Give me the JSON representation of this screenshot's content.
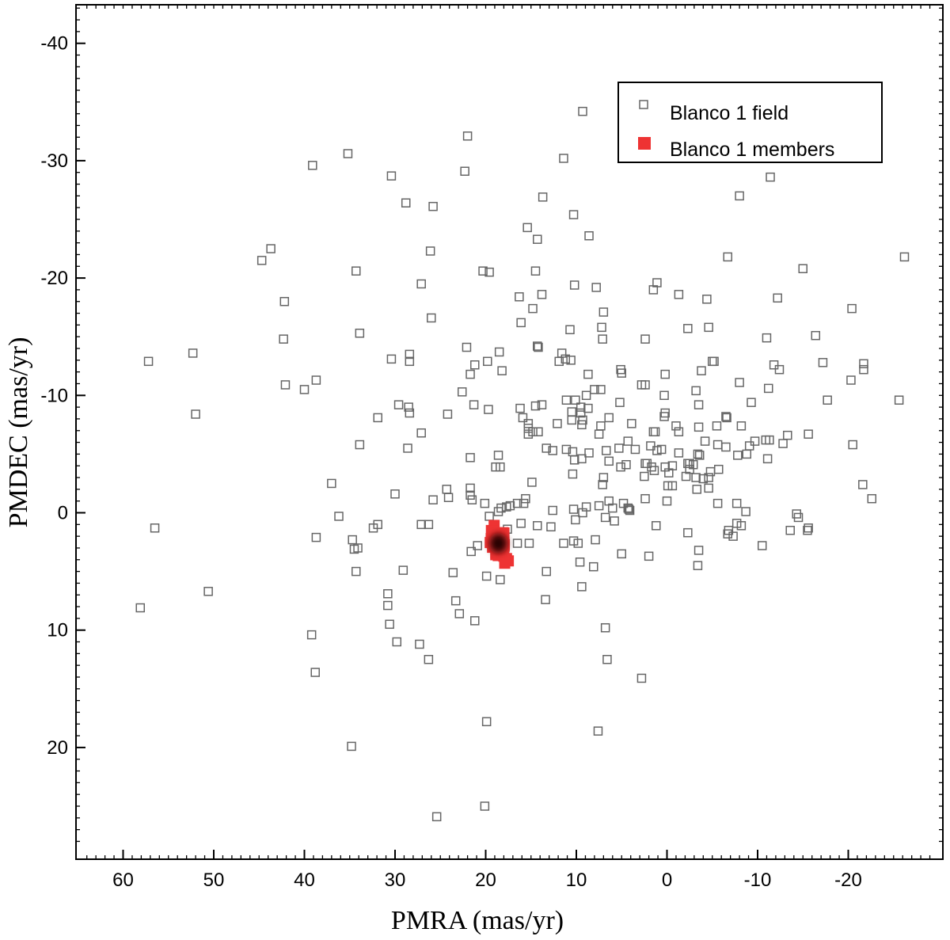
{
  "chart_data": {
    "type": "scatter",
    "title": "",
    "xlabel": "PMRA (mas/yr)",
    "ylabel": "PMDEC (mas/yr)",
    "xlim": [
      65,
      -30
    ],
    "ylim": [
      29,
      -44
    ],
    "x_reversed": true,
    "y_reversed": true,
    "grid": false,
    "legend_position": "top-right",
    "x_ticks": [
      60,
      50,
      40,
      30,
      20,
      10,
      0,
      -10,
      -20
    ],
    "y_ticks": [
      -40,
      -30,
      -20,
      -10,
      0,
      10,
      20
    ],
    "series": [
      {
        "name": "Blanco 1 field",
        "marker": "open-square",
        "color": "#666666",
        "points": [
          [
            9.3,
            -34.2
          ],
          [
            35.2,
            -30.6
          ],
          [
            22,
            -32.1
          ],
          [
            11.4,
            -30.2
          ],
          [
            39.1,
            -29.6
          ],
          [
            30.4,
            -28.7
          ],
          [
            22.3,
            -29.1
          ],
          [
            -11.4,
            -28.6
          ],
          [
            28.8,
            -26.4
          ],
          [
            25.8,
            -26.1
          ],
          [
            13.7,
            -26.9
          ],
          [
            -8,
            -27
          ],
          [
            10.3,
            -25.4
          ],
          [
            15.4,
            -24.3
          ],
          [
            14.3,
            -23.3
          ],
          [
            8.6,
            -23.6
          ],
          [
            43.7,
            -22.5
          ],
          [
            44.7,
            -21.5
          ],
          [
            26.1,
            -22.3
          ],
          [
            -6.7,
            -21.8
          ],
          [
            -26.2,
            -21.8
          ],
          [
            34.3,
            -20.6
          ],
          [
            20.3,
            -20.6
          ],
          [
            19.6,
            -20.5
          ],
          [
            14.5,
            -20.6
          ],
          [
            -15,
            -20.8
          ],
          [
            27.1,
            -19.5
          ],
          [
            10.2,
            -19.4
          ],
          [
            7.8,
            -19.2
          ],
          [
            1.1,
            -19.6
          ],
          [
            1.5,
            -19
          ],
          [
            42.2,
            -18
          ],
          [
            16.3,
            -18.4
          ],
          [
            13.8,
            -18.6
          ],
          [
            -1.3,
            -18.6
          ],
          [
            -4.4,
            -18.2
          ],
          [
            -12.2,
            -18.3
          ],
          [
            14.8,
            -17.4
          ],
          [
            7,
            -17.1
          ],
          [
            -20.4,
            -17.4
          ],
          [
            26,
            -16.6
          ],
          [
            16.1,
            -16.2
          ],
          [
            10.7,
            -15.6
          ],
          [
            7.2,
            -15.8
          ],
          [
            -2.3,
            -15.7
          ],
          [
            -4.6,
            -15.8
          ],
          [
            33.9,
            -15.3
          ],
          [
            42.3,
            -14.8
          ],
          [
            7.1,
            -14.8
          ],
          [
            2.4,
            -14.8
          ],
          [
            -11,
            -14.9
          ],
          [
            -16.4,
            -15.1
          ],
          [
            52.3,
            -13.6
          ],
          [
            57.2,
            -12.9
          ],
          [
            28.4,
            -13.5
          ],
          [
            30.4,
            -13.1
          ],
          [
            28.4,
            -12.9
          ],
          [
            22.1,
            -14.1
          ],
          [
            18.5,
            -13.7
          ],
          [
            14.3,
            -14.2
          ],
          [
            14.2,
            -14.1
          ],
          [
            11.6,
            -13.6
          ],
          [
            11.2,
            -13.1
          ],
          [
            11.9,
            -12.9
          ],
          [
            10.6,
            -13
          ],
          [
            21.2,
            -12.6
          ],
          [
            19.8,
            -12.9
          ],
          [
            21.7,
            -11.8
          ],
          [
            18.2,
            -12.1
          ],
          [
            5.1,
            -12.2
          ],
          [
            5,
            -11.9
          ],
          [
            -3.8,
            -12.1
          ],
          [
            -5,
            -12.9
          ],
          [
            -5.2,
            -12.9
          ],
          [
            -11.8,
            -12.6
          ],
          [
            -12.4,
            -12.2
          ],
          [
            -17.2,
            -12.8
          ],
          [
            -21.7,
            -12.7
          ],
          [
            -21.7,
            -12.2
          ],
          [
            8.7,
            -11.8
          ],
          [
            0.2,
            -11.8
          ],
          [
            42.1,
            -10.9
          ],
          [
            38.7,
            -11.3
          ],
          [
            40,
            -10.5
          ],
          [
            -8,
            -11.1
          ],
          [
            -20.3,
            -11.3
          ],
          [
            52,
            -8.4
          ],
          [
            22.6,
            -10.3
          ],
          [
            7.3,
            -10.5
          ],
          [
            2.4,
            -10.9
          ],
          [
            2.8,
            -10.9
          ],
          [
            -3.2,
            -10.4
          ],
          [
            -11.2,
            -10.6
          ],
          [
            -17.7,
            -9.6
          ],
          [
            -25.6,
            -9.6
          ],
          [
            29.6,
            -9.2
          ],
          [
            28.5,
            -9
          ],
          [
            28.4,
            -8.5
          ],
          [
            21.3,
            -9.2
          ],
          [
            19.7,
            -8.8
          ],
          [
            16.2,
            -8.9
          ],
          [
            13.8,
            -9.2
          ],
          [
            11.1,
            -9.6
          ],
          [
            10.1,
            -9.6
          ],
          [
            8.9,
            -10
          ],
          [
            8,
            -10.5
          ],
          [
            5.2,
            -9.4
          ],
          [
            0.3,
            -10
          ],
          [
            -3.5,
            -9.2
          ],
          [
            -9.3,
            -9.4
          ],
          [
            31.9,
            -8.1
          ],
          [
            24.2,
            -8.4
          ],
          [
            15.9,
            -8.1
          ],
          [
            14.5,
            -9.1
          ],
          [
            10.5,
            -8.6
          ],
          [
            9.5,
            -9
          ],
          [
            9.5,
            -8.5
          ],
          [
            8.7,
            -8.9
          ],
          [
            6.4,
            -8.1
          ],
          [
            0.3,
            -8.2
          ],
          [
            -6.5,
            -8.2
          ],
          [
            -6.6,
            -8.1
          ],
          [
            15.3,
            -7.6
          ],
          [
            15.3,
            -7.2
          ],
          [
            12.1,
            -7.6
          ],
          [
            10.5,
            -7.9
          ],
          [
            9.4,
            -7.5
          ],
          [
            9.3,
            -7.9
          ],
          [
            7.3,
            -7.4
          ],
          [
            3.9,
            -7.6
          ],
          [
            0.2,
            -8.5
          ],
          [
            -1,
            -7.4
          ],
          [
            -3.5,
            -7.3
          ],
          [
            -5.5,
            -7.4
          ],
          [
            -8.2,
            -7.4
          ],
          [
            27.1,
            -6.8
          ],
          [
            15.3,
            -6.7
          ],
          [
            14.8,
            -6.9
          ],
          [
            14.2,
            -6.9
          ],
          [
            7.5,
            -6.7
          ],
          [
            4.3,
            -6.1
          ],
          [
            1.5,
            -6.9
          ],
          [
            1.3,
            -6.9
          ],
          [
            -1.3,
            -6.9
          ],
          [
            -4.2,
            -6.1
          ],
          [
            -5.6,
            -5.8
          ],
          [
            -9.1,
            -5.7
          ],
          [
            -9.7,
            -6.1
          ],
          [
            -10.9,
            -6.2
          ],
          [
            -11.3,
            -6.2
          ],
          [
            -12.8,
            -5.9
          ],
          [
            -13.3,
            -6.6
          ],
          [
            -15.6,
            -6.7
          ],
          [
            -20.5,
            -5.8
          ],
          [
            33.9,
            -5.8
          ],
          [
            28.6,
            -5.5
          ],
          [
            13.3,
            -5.5
          ],
          [
            12.6,
            -5.3
          ],
          [
            11.1,
            -5.4
          ],
          [
            10.4,
            -5.2
          ],
          [
            8.6,
            -5.1
          ],
          [
            6.7,
            -5.3
          ],
          [
            5.3,
            -5.5
          ],
          [
            3.5,
            -5.4
          ],
          [
            1.8,
            -5.7
          ],
          [
            1.1,
            -5.3
          ],
          [
            0.6,
            -5.4
          ],
          [
            -1.3,
            -5.1
          ],
          [
            -3.4,
            -5
          ],
          [
            -3.6,
            -4.9
          ],
          [
            -6.5,
            -5.6
          ],
          [
            -7.8,
            -4.9
          ],
          [
            -8.8,
            -5
          ],
          [
            -11.1,
            -4.6
          ],
          [
            21.7,
            -4.7
          ],
          [
            18.6,
            -4.9
          ],
          [
            18.9,
            -3.9
          ],
          [
            18.4,
            -3.9
          ],
          [
            10.2,
            -4.5
          ],
          [
            9.4,
            -4.6
          ],
          [
            6.4,
            -4.4
          ],
          [
            5.1,
            -3.9
          ],
          [
            4.5,
            -4.1
          ],
          [
            2.4,
            -4.2
          ],
          [
            2.2,
            -4.2
          ],
          [
            1.7,
            -3.9
          ],
          [
            1.4,
            -3.6
          ],
          [
            0.2,
            -3.9
          ],
          [
            -0.6,
            -4
          ],
          [
            -2.3,
            -4.2
          ],
          [
            -2.5,
            -4.2
          ],
          [
            -2.5,
            -3.7
          ],
          [
            -2.9,
            -4.1
          ],
          [
            -4.8,
            -3.5
          ],
          [
            10.4,
            -3.3
          ],
          [
            7,
            -3
          ],
          [
            2.5,
            -3.1
          ],
          [
            -2.1,
            -3.1
          ],
          [
            -3.2,
            -3
          ],
          [
            -4,
            -2.9
          ],
          [
            -4.6,
            -3
          ],
          [
            -5.7,
            -3.7
          ],
          [
            -0.2,
            -3.4
          ],
          [
            37,
            -2.5
          ],
          [
            24.3,
            -2
          ],
          [
            21.7,
            -2.1
          ],
          [
            14.9,
            -2.6
          ],
          [
            7.1,
            -2.4
          ],
          [
            -0.6,
            -2.3
          ],
          [
            -0.1,
            -2.3
          ],
          [
            -3.3,
            -2
          ],
          [
            -4.6,
            -2.1
          ],
          [
            -21.6,
            -2.4
          ],
          [
            -22.6,
            -1.2
          ],
          [
            30,
            -1.6
          ],
          [
            25.8,
            -1.1
          ],
          [
            24.1,
            -1.3
          ],
          [
            21.7,
            -1.5
          ],
          [
            21.5,
            -1.1
          ],
          [
            17.7,
            -0.5
          ],
          [
            20.1,
            -0.8
          ],
          [
            17.3,
            -0.6
          ],
          [
            16.5,
            -0.8
          ],
          [
            15.8,
            -0.8
          ],
          [
            15.6,
            -1.2
          ],
          [
            18.3,
            -0.4
          ],
          [
            18.6,
            -0.1
          ],
          [
            12.6,
            -0.2
          ],
          [
            10.3,
            -0.3
          ],
          [
            8.9,
            -0.5
          ],
          [
            7.5,
            -0.6
          ],
          [
            6,
            -0.4
          ],
          [
            6.4,
            -1
          ],
          [
            4.8,
            -0.8
          ],
          [
            4.2,
            -0.3
          ],
          [
            4.3,
            -0.4
          ],
          [
            4.1,
            -0.2
          ],
          [
            2.4,
            -1.2
          ],
          [
            0,
            -1
          ],
          [
            -5.6,
            -0.8
          ],
          [
            -7.7,
            -0.8
          ],
          [
            -8.7,
            -0.1
          ],
          [
            -13.6,
            1.5
          ],
          [
            -15.6,
            1.3
          ],
          [
            -14.3,
            0.1
          ],
          [
            56.5,
            1.3
          ],
          [
            38.7,
            2.1
          ],
          [
            36.2,
            0.3
          ],
          [
            34.7,
            2.3
          ],
          [
            34.5,
            3.1
          ],
          [
            34.1,
            3
          ],
          [
            31.9,
            1
          ],
          [
            32.4,
            1.3
          ],
          [
            27.1,
            1
          ],
          [
            26.3,
            1
          ],
          [
            34.3,
            5
          ],
          [
            16.1,
            0.9
          ],
          [
            19.6,
            0.3
          ],
          [
            18.7,
            2
          ],
          [
            18.4,
            2.6
          ],
          [
            17.6,
            1.4
          ],
          [
            14.3,
            1.1
          ],
          [
            12.8,
            1.2
          ],
          [
            10.1,
            0.6
          ],
          [
            9.3,
            0
          ],
          [
            6.8,
            0.4
          ],
          [
            5.8,
            0.7
          ],
          [
            1.2,
            1.1
          ],
          [
            -2.3,
            1.7
          ],
          [
            -8.2,
            1.1
          ],
          [
            -7.7,
            0.9
          ],
          [
            -10.5,
            2.8
          ],
          [
            21.6,
            3.3
          ],
          [
            20.9,
            2.8
          ],
          [
            16.5,
            2.6
          ],
          [
            15.2,
            2.6
          ],
          [
            11.4,
            2.6
          ],
          [
            10.3,
            2.4
          ],
          [
            9.8,
            2.6
          ],
          [
            7.9,
            2.3
          ],
          [
            5,
            3.5
          ],
          [
            2,
            3.7
          ],
          [
            -3.5,
            3.2
          ],
          [
            -3.4,
            4.5
          ],
          [
            -6.8,
            1.5
          ],
          [
            -6.7,
            1.8
          ],
          [
            -7.3,
            2
          ],
          [
            -14.5,
            0.4
          ],
          [
            -15.5,
            1.5
          ],
          [
            29.1,
            4.9
          ],
          [
            23.6,
            5.1
          ],
          [
            13.3,
            5
          ],
          [
            19.9,
            5.4
          ],
          [
            18.4,
            5.7
          ],
          [
            9.6,
            4.2
          ],
          [
            8.1,
            4.6
          ],
          [
            58.1,
            8.1
          ],
          [
            50.6,
            6.7
          ],
          [
            30.8,
            6.9
          ],
          [
            30.8,
            7.9
          ],
          [
            30.6,
            9.5
          ],
          [
            29.8,
            11
          ],
          [
            27.3,
            11.2
          ],
          [
            26.3,
            12.5
          ],
          [
            23.3,
            7.5
          ],
          [
            22.9,
            8.6
          ],
          [
            21.2,
            9.2
          ],
          [
            13.4,
            7.4
          ],
          [
            9.4,
            6.3
          ],
          [
            39.2,
            10.4
          ],
          [
            38.8,
            13.6
          ],
          [
            6.8,
            9.8
          ],
          [
            6.6,
            12.5
          ],
          [
            2.8,
            14.1
          ],
          [
            19.9,
            17.8
          ],
          [
            7.6,
            18.6
          ],
          [
            34.8,
            19.9
          ],
          [
            20.1,
            25
          ],
          [
            25.4,
            25.9
          ]
        ]
      },
      {
        "name": "Blanco 1 members",
        "marker": "filled-square",
        "color": "#ee3333",
        "core_color": "#1a0000",
        "center": [
          18.6,
          2.6
        ],
        "spread": [
          0.8,
          1.0
        ],
        "count": 90
      }
    ]
  }
}
